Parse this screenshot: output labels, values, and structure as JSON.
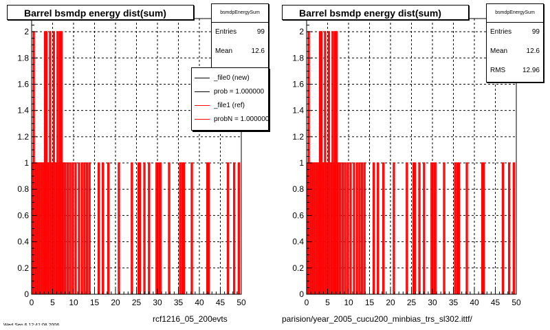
{
  "colors": {
    "ref": "#ff0000",
    "new": "#000000",
    "grid": "#000000"
  },
  "panels": [
    {
      "title": "Barrel bsmdp energy dist(sum)",
      "stats": {
        "name": "bsmdpEnergySum",
        "rows": [
          {
            "label": "Entries",
            "value": "99"
          },
          {
            "label": "Mean",
            "value": "12.6"
          }
        ]
      },
      "footer": "rcf1216_05_200evts"
    },
    {
      "title": "Barrel bsmdp energy dist(sum)",
      "stats": {
        "name": "bsmdpEnergySum",
        "rows": [
          {
            "label": "Entries",
            "value": "99"
          },
          {
            "label": "Mean",
            "value": "12.6"
          },
          {
            "label": "RMS",
            "value": "12.96"
          }
        ]
      },
      "footer": "parision/year_2005_cucu200_minbias_trs_sl302.ittf/"
    }
  ],
  "legend": {
    "entries": [
      {
        "label": "_file0 (new)",
        "color": "#000000"
      },
      {
        "label": "prob = 1.000000",
        "color": "#000000"
      },
      {
        "label": "_file1 (ref)",
        "color": "#ff0000"
      },
      {
        "label": "probN = 1.000000",
        "color": "#ff0000"
      }
    ]
  },
  "bottom_left_clip": "Wed Sep  6 12:41:08 2006",
  "chart_data": [
    {
      "type": "bar",
      "title": "Barrel bsmdp energy dist(sum)",
      "xlim": [
        0,
        50
      ],
      "ylim": [
        0,
        2.1
      ],
      "xticks": [
        0,
        5,
        10,
        15,
        20,
        25,
        30,
        35,
        40,
        45,
        50
      ],
      "yticks": [
        0,
        0.2,
        0.4,
        0.6,
        0.8,
        1,
        1.2,
        1.4,
        1.6,
        1.8,
        2
      ],
      "grid": true,
      "legend": "top-right",
      "series": [
        {
          "name": "_file1 (ref)",
          "bins": [
            [
              0.2,
              1
            ],
            [
              0.5,
              2
            ],
            [
              0.8,
              1
            ],
            [
              1.1,
              1
            ],
            [
              1.4,
              1
            ],
            [
              1.7,
              1
            ],
            [
              2.0,
              1
            ],
            [
              2.3,
              1
            ],
            [
              2.6,
              1
            ],
            [
              2.9,
              1
            ],
            [
              3.2,
              2
            ],
            [
              3.5,
              2
            ],
            [
              3.8,
              1
            ],
            [
              4.1,
              1
            ],
            [
              4.4,
              2
            ],
            [
              4.7,
              1
            ],
            [
              5.0,
              1
            ],
            [
              5.3,
              2
            ],
            [
              5.6,
              1
            ],
            [
              5.9,
              1
            ],
            [
              6.2,
              2
            ],
            [
              6.5,
              1
            ],
            [
              6.8,
              2
            ],
            [
              7.1,
              2
            ],
            [
              7.6,
              1
            ],
            [
              8.0,
              1
            ],
            [
              8.6,
              1
            ],
            [
              9.2,
              1
            ],
            [
              9.8,
              1
            ],
            [
              10.5,
              1
            ],
            [
              11.3,
              1
            ],
            [
              12.0,
              1
            ],
            [
              12.6,
              1
            ],
            [
              13.2,
              1
            ],
            [
              13.8,
              1
            ],
            [
              16.0,
              1
            ],
            [
              17.0,
              1
            ],
            [
              18.3,
              1
            ],
            [
              20.8,
              1
            ],
            [
              23.9,
              1
            ],
            [
              25.5,
              1
            ],
            [
              25.8,
              1
            ],
            [
              26.9,
              1
            ],
            [
              28.0,
              1
            ],
            [
              29.8,
              1
            ],
            [
              30.2,
              1
            ],
            [
              30.7,
              1
            ],
            [
              32.8,
              1
            ],
            [
              35.4,
              1
            ],
            [
              36.0,
              1
            ],
            [
              36.3,
              1
            ],
            [
              38.2,
              1
            ],
            [
              41.9,
              1
            ],
            [
              42.2,
              1
            ],
            [
              46.8,
              1
            ],
            [
              48.3,
              1
            ],
            [
              49.4,
              1
            ]
          ]
        }
      ]
    },
    {
      "type": "bar",
      "title": "Barrel bsmdp energy dist(sum)",
      "xlim": [
        0,
        50
      ],
      "ylim": [
        0,
        2.1
      ],
      "xticks": [
        0,
        5,
        10,
        15,
        20,
        25,
        30,
        35,
        40,
        45,
        50
      ],
      "yticks": [
        0,
        0.2,
        0.4,
        0.6,
        0.8,
        1,
        1.2,
        1.4,
        1.6,
        1.8,
        2
      ],
      "grid": true,
      "series": [
        {
          "name": "_file1 (ref)",
          "bins": [
            [
              0.2,
              1
            ],
            [
              0.5,
              2
            ],
            [
              0.8,
              1
            ],
            [
              1.1,
              1
            ],
            [
              1.4,
              1
            ],
            [
              1.7,
              1
            ],
            [
              2.0,
              1
            ],
            [
              2.3,
              1
            ],
            [
              2.6,
              1
            ],
            [
              2.9,
              1
            ],
            [
              3.2,
              2
            ],
            [
              3.5,
              2
            ],
            [
              3.8,
              1
            ],
            [
              4.1,
              1
            ],
            [
              4.4,
              2
            ],
            [
              4.7,
              1
            ],
            [
              5.0,
              1
            ],
            [
              5.3,
              2
            ],
            [
              5.6,
              1
            ],
            [
              5.9,
              1
            ],
            [
              6.2,
              2
            ],
            [
              6.5,
              1
            ],
            [
              6.8,
              2
            ],
            [
              7.1,
              2
            ],
            [
              7.6,
              1
            ],
            [
              8.0,
              1
            ],
            [
              8.6,
              1
            ],
            [
              9.2,
              1
            ],
            [
              9.8,
              1
            ],
            [
              10.5,
              1
            ],
            [
              11.3,
              1
            ],
            [
              12.0,
              1
            ],
            [
              12.6,
              1
            ],
            [
              13.2,
              1
            ],
            [
              13.8,
              1
            ],
            [
              16.0,
              1
            ],
            [
              17.0,
              1
            ],
            [
              18.3,
              1
            ],
            [
              20.8,
              1
            ],
            [
              23.9,
              1
            ],
            [
              25.5,
              1
            ],
            [
              25.8,
              1
            ],
            [
              26.9,
              1
            ],
            [
              28.0,
              1
            ],
            [
              29.8,
              1
            ],
            [
              30.2,
              1
            ],
            [
              30.7,
              1
            ],
            [
              32.8,
              1
            ],
            [
              35.4,
              1
            ],
            [
              36.0,
              1
            ],
            [
              36.3,
              1
            ],
            [
              38.2,
              1
            ],
            [
              41.9,
              1
            ],
            [
              42.2,
              1
            ],
            [
              46.8,
              1
            ],
            [
              48.3,
              1
            ],
            [
              49.4,
              1
            ]
          ]
        }
      ]
    }
  ]
}
